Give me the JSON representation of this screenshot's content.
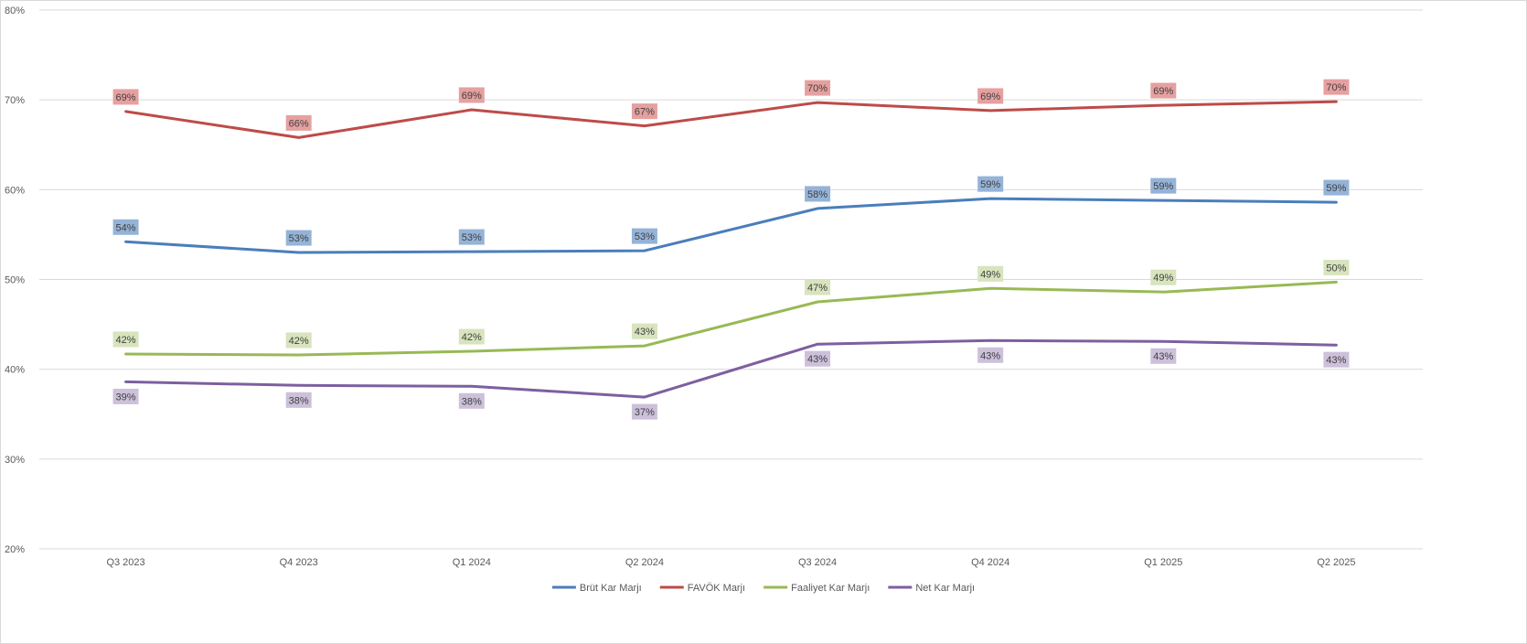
{
  "chart_data": {
    "type": "line",
    "title": "",
    "xlabel": "",
    "ylabel": "",
    "categories": [
      "Q3 2023",
      "Q4 2023",
      "Q1 2024",
      "Q2 2024",
      "Q3 2024",
      "Q4 2024",
      "Q1 2025",
      "Q2 2025"
    ],
    "ylim": [
      20,
      80
    ],
    "yticks": [
      20,
      30,
      40,
      50,
      60,
      70,
      80
    ],
    "y_tick_labels": [
      "20%",
      "30%",
      "40%",
      "50%",
      "60%",
      "70%",
      "80%"
    ],
    "grid": true,
    "legend_position": "bottom",
    "series": [
      {
        "name": "Brüt Kar Marjı",
        "color": "#4a7ebb",
        "label_bg": "#95b3d7",
        "label_position": "above",
        "values": [
          54.2,
          53.0,
          53.1,
          53.2,
          57.9,
          59.0,
          58.8,
          58.6
        ],
        "labels": [
          "54%",
          "53%",
          "53%",
          "53%",
          "58%",
          "59%",
          "59%",
          "59%"
        ]
      },
      {
        "name": "FAVÖK Marjı",
        "color": "#be4b48",
        "label_bg": "#e6a0a0",
        "label_position": "above",
        "values": [
          68.7,
          65.8,
          68.9,
          67.1,
          69.7,
          68.8,
          69.4,
          69.8
        ],
        "labels": [
          "69%",
          "66%",
          "69%",
          "67%",
          "70%",
          "69%",
          "69%",
          "70%"
        ]
      },
      {
        "name": "Faaliyet Kar Marjı",
        "color": "#98b954",
        "label_bg": "#d7e4bd",
        "label_position": "above",
        "values": [
          41.7,
          41.6,
          42.0,
          42.6,
          47.5,
          49.0,
          48.6,
          49.7
        ],
        "labels": [
          "42%",
          "42%",
          "42%",
          "43%",
          "47%",
          "49%",
          "49%",
          "50%"
        ]
      },
      {
        "name": "Net Kar Marjı",
        "color": "#7d5fa0",
        "label_bg": "#ccc0da",
        "label_position": "below",
        "values": [
          38.6,
          38.2,
          38.1,
          36.9,
          42.8,
          43.2,
          43.1,
          42.7
        ],
        "labels": [
          "39%",
          "38%",
          "38%",
          "37%",
          "43%",
          "43%",
          "43%",
          "43%"
        ]
      }
    ]
  }
}
